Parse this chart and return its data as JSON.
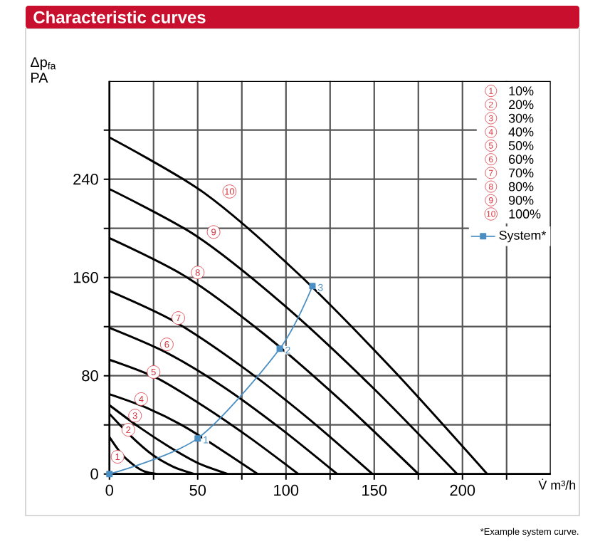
{
  "chart_data": {
    "type": "line",
    "title": "Characteristic curves",
    "xlabel": "V̇ m³/h",
    "ylabel": "Δp$_{fa}$ PA",
    "xlim": [
      0,
      250
    ],
    "ylim": [
      0,
      320
    ],
    "xticks": [
      0,
      {
        "value": 25,
        "label": null
      },
      50,
      {
        "value": 75,
        "label": null
      },
      100,
      {
        "value": 125,
        "label": null
      },
      150,
      {
        "value": 175,
        "label": null
      },
      200,
      {
        "value": 225,
        "label": null
      }
    ],
    "yticks": [
      0,
      {
        "value": 40,
        "label": null
      },
      80,
      {
        "value": 120,
        "label": null
      },
      160,
      {
        "value": 200,
        "label": null
      },
      240,
      {
        "value": 280,
        "label": null
      }
    ],
    "grid": true,
    "legend": "top right",
    "marker": "none",
    "line_style": "solid",
    "series": [
      {
        "color": "#000000",
        "x": [
          0,
          7,
          14,
          20,
          27
        ],
        "values": [
          30,
          16,
          7,
          2,
          0
        ]
      },
      {
        "color": "#000000",
        "x": [
          0,
          12,
          24,
          36,
          48
        ],
        "values": [
          49,
          31,
          16,
          6,
          0
        ]
      },
      {
        "color": "#000000",
        "x": [
          0,
          17,
          34,
          50,
          67
        ],
        "values": [
          56,
          38,
          22,
          9,
          0
        ]
      },
      {
        "color": "#000000",
        "x": [
          0,
          21,
          42,
          63,
          84
        ],
        "values": [
          65,
          54,
          39,
          20,
          0
        ]
      },
      {
        "color": "#000000",
        "x": [
          0,
          27,
          53.5,
          80,
          107
        ],
        "values": [
          93,
          78,
          55,
          29,
          0
        ]
      },
      {
        "color": "#000000",
        "x": [
          0,
          32,
          64.5,
          97,
          129
        ],
        "values": [
          119,
          99,
          71,
          37,
          0
        ]
      },
      {
        "color": "#000000",
        "x": [
          0,
          37,
          74.5,
          112,
          149
        ],
        "values": [
          149,
          124,
          88,
          46,
          0
        ]
      },
      {
        "color": "#000000",
        "x": [
          0,
          44,
          87.5,
          131,
          175
        ],
        "values": [
          192,
          160,
          114,
          60,
          0
        ]
      },
      {
        "color": "#000000",
        "x": [
          0,
          49,
          98.5,
          148,
          197
        ],
        "values": [
          232,
          194,
          138,
          72,
          0
        ]
      },
      {
        "color": "#000000",
        "x": [
          0,
          53.5,
          107,
          160.5,
          214
        ],
        "values": [
          274,
          229,
          163,
          85,
          0
        ]
      },
      {
        "name": "System*",
        "color": "#4a8ec2",
        "marker": "square",
        "x": [
          0,
          50,
          96.5,
          115
        ],
        "values": [
          0,
          29,
          102,
          153
        ]
      }
    ],
    "annotations": [
      {
        "text": "1",
        "x": 4.6,
        "y": 14
      },
      {
        "text": "2",
        "x": 10.7,
        "y": 36
      },
      {
        "text": "3",
        "x": 14.5,
        "y": 47.5
      },
      {
        "text": "4",
        "x": 18,
        "y": 61
      },
      {
        "text": "5",
        "x": 25,
        "y": 83
      },
      {
        "text": "6",
        "x": 32.5,
        "y": 105.5
      },
      {
        "text": "7",
        "x": 39,
        "y": 127
      },
      {
        "text": "8",
        "x": 50,
        "y": 164
      },
      {
        "text": "9",
        "x": 59,
        "y": 197
      },
      {
        "text": "10",
        "x": 68,
        "y": 230
      },
      {
        "text": "1",
        "x": 50,
        "y": 29
      },
      {
        "text": "2",
        "x": 96.5,
        "y": 102
      },
      {
        "text": "3",
        "x": 115,
        "y": 153
      },
      "10%",
      "20%",
      "30%",
      "40%",
      "50%",
      "60%",
      "70%",
      "80%",
      "90%",
      "100%",
      "*Example system curve."
    ]
  }
}
